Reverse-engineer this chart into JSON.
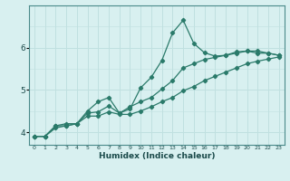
{
  "xlabel": "Humidex (Indice chaleur)",
  "bg_color": "#d8f0f0",
  "grid_color": "#c0e0e0",
  "line_color": "#2a7a6a",
  "xlim": [
    -0.5,
    23.5
  ],
  "ylim": [
    3.7,
    7.0
  ],
  "yticks": [
    4,
    5,
    6
  ],
  "xticks": [
    0,
    1,
    2,
    3,
    4,
    5,
    6,
    7,
    8,
    9,
    10,
    11,
    12,
    13,
    14,
    15,
    16,
    17,
    18,
    19,
    20,
    21,
    22,
    23
  ],
  "series1_y": [
    3.9,
    3.9,
    4.15,
    4.15,
    4.2,
    4.45,
    4.48,
    4.62,
    4.45,
    4.55,
    5.05,
    5.3,
    5.7,
    6.35,
    6.65,
    6.1,
    5.88,
    5.8,
    5.82,
    5.9,
    5.92,
    5.87,
    5.87,
    5.82
  ],
  "series2_y": [
    3.9,
    3.9,
    4.15,
    4.2,
    4.2,
    4.5,
    4.72,
    4.82,
    4.45,
    4.6,
    4.72,
    4.82,
    5.02,
    5.22,
    5.52,
    5.62,
    5.72,
    5.77,
    5.82,
    5.87,
    5.92,
    5.92,
    5.87,
    5.82
  ],
  "series3_y": [
    3.9,
    3.9,
    4.1,
    4.15,
    4.2,
    4.38,
    4.38,
    4.48,
    4.42,
    4.42,
    4.5,
    4.6,
    4.72,
    4.82,
    4.98,
    5.08,
    5.22,
    5.32,
    5.42,
    5.52,
    5.62,
    5.68,
    5.73,
    5.78
  ]
}
